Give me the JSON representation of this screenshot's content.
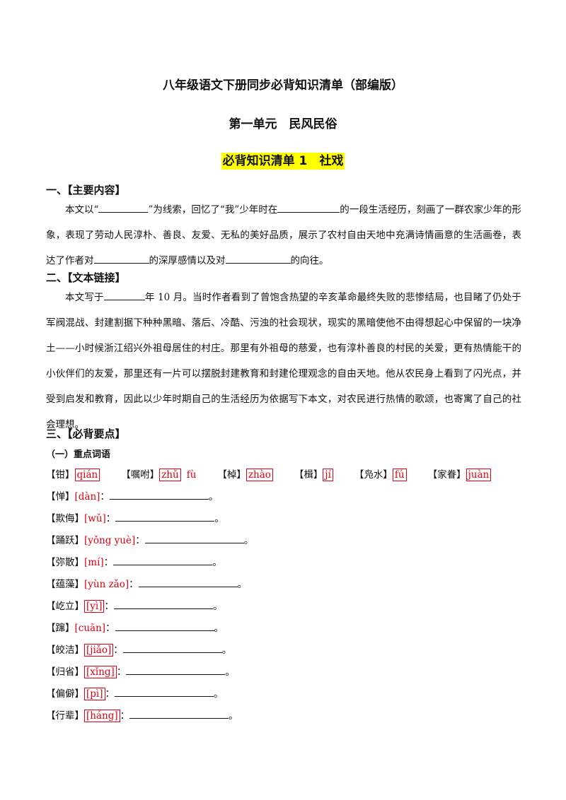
{
  "header": {
    "title": "八年级语文下册同步必背知识清单（部编版）",
    "unit": "第一单元　民风民俗",
    "subtitle": "必背知识清单 1　社戏"
  },
  "sections": [
    {
      "heading": "一、【主要内容】",
      "paragraph_parts": [
        "本文以“",
        "”为线索，回忆了“我”少年时在",
        "的一段生活经历，刻画了一群农家少年的形象，表现了劳动人民淳朴、善良、友爱、无私的美好品质，展示了农村自由天地中充满诗情画意的生活画卷，表达了作者对",
        "的深厚感情以及对",
        "的向往。"
      ]
    },
    {
      "heading": "二、【文本链接】",
      "paragraph_parts": [
        "本文写于",
        "年 10 月。当时作者看到了曾饱含热望的辛亥革命最终失败的悲惨结局，也目睹了仍处于军阀混战、封建割据下种种黑暗、落后、冷酷、污浊的社会现状，现实的黑暗使他不由得想起心中保留的一块净土——小时候浙江绍兴外祖母居住的村庄。那里有外祖母的慈爱，也有淳朴善良的村民的关爱，更有热情能干的小伙伴们的友爱，那里还有一片可以摆脱封建教育和封建伦理观念的自由天地。他从农民身上看到了闪光点，并受到启发和教育，因此以少年时期自己的生活经历为依据写下本文，对农民进行热情的歌颂，也寄寓了自己的社会理想。"
      ]
    }
  ],
  "key_points": {
    "heading": "三、【必背要点】",
    "subheading": "（一）重点词语",
    "inline": [
      {
        "word": "【钳】",
        "pinyin": "qián"
      },
      {
        "word": "【嘱咐】",
        "pinyin": "zhǔ",
        "extra": "fù"
      },
      {
        "word": "【棹】",
        "pinyin": "zhào"
      },
      {
        "word": "【楫】",
        "pinyin": "jí"
      },
      {
        "word": "【凫水】",
        "pinyin": "fú"
      },
      {
        "word": "【家眷】",
        "pinyin": "juàn"
      }
    ],
    "separator": "：",
    "terminator": "。",
    "items": [
      {
        "word": "【惮】",
        "pinyin": "[dàn]",
        "boxed": false
      },
      {
        "word": "【欺侮】",
        "pinyin": "[wǔ]",
        "boxed": false
      },
      {
        "word": "【踊跃】",
        "pinyin": "[yǒng yuè]",
        "boxed": false
      },
      {
        "word": "【弥散】",
        "pinyin": "[mí]",
        "boxed": false
      },
      {
        "word": "【蕴藻】",
        "pinyin": "[yùn zǎo]",
        "boxed": false
      },
      {
        "word": "【屹立】",
        "pinyin": "[yì]",
        "boxed": true
      },
      {
        "word": "【蹿】",
        "pinyin": "[cuān]",
        "boxed": false
      },
      {
        "word": "【皎洁】",
        "pinyin": "[jiǎo]",
        "boxed": true
      },
      {
        "word": "【归省】",
        "pinyin": "[xǐng]",
        "boxed": true
      },
      {
        "word": "【偏僻】",
        "pinyin": "[pì]",
        "boxed": true
      },
      {
        "word": "【行辈】",
        "pinyin": "[háng]",
        "boxed": true
      }
    ]
  }
}
